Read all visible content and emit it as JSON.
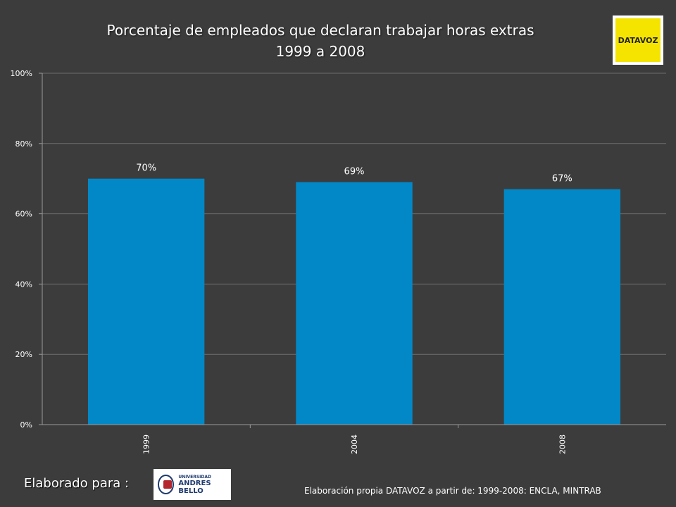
{
  "chart_data": {
    "type": "bar",
    "title": "Porcentaje de empleados que declaran trabajar horas extras",
    "subtitle": "1999 a 2008",
    "categories": [
      "1999",
      "2004",
      "2008"
    ],
    "values": [
      70,
      69,
      67
    ],
    "data_labels": [
      "70%",
      "69%",
      "67%"
    ],
    "ylim": [
      0,
      100
    ],
    "yticks": [
      0,
      20,
      40,
      60,
      80,
      100
    ],
    "ytick_labels": [
      "0%",
      "20%",
      "40%",
      "60%",
      "80%",
      "100%"
    ],
    "grid": true,
    "bar_color": "#0288c7"
  },
  "logos": {
    "datavoz": "DATAVOZ",
    "unab_small": "UNIVERSIDAD",
    "unab_big": "ANDRES BELLO"
  },
  "footer": {
    "elaborado": "Elaborado para :",
    "source": "Elaboración propia DATAVOZ a partir de: 1999-2008: ENCLA, MINTRAB"
  }
}
